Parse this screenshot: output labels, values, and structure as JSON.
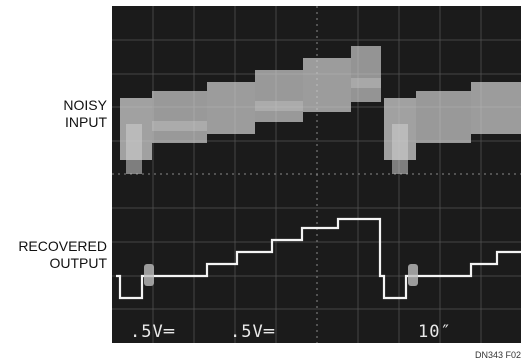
{
  "labels": {
    "noisy_input": [
      "NOISY",
      "INPUT"
    ],
    "recovered_output": [
      "RECOVERED",
      "OUTPUT"
    ]
  },
  "readouts": {
    "ch1": ".5V═",
    "ch2": ".5V═",
    "time": "10″"
  },
  "figure_id": "DN343 F02",
  "colors": {
    "screen": "#1b1b1b",
    "grid": "#6a6a6a",
    "trace": "#f4f4f4",
    "noise": "#cfcfcf"
  }
}
